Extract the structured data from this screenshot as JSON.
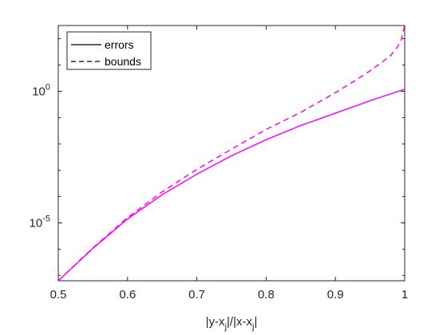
{
  "chart_data": {
    "type": "line",
    "title": "",
    "xlabel": "|y-x_j|/|x-x_j|",
    "ylabel": "",
    "xlim": [
      0.5,
      1.0
    ],
    "ylim": [
      -7.2,
      2.5
    ],
    "y_scale": "log",
    "x_ticks": [
      0.5,
      0.6,
      0.7,
      0.8,
      0.9,
      1.0
    ],
    "x_tick_labels": [
      "0.5",
      "0.6",
      "0.7",
      "0.8",
      "0.9",
      "1"
    ],
    "y_ticks": [
      {
        "exponent": 0,
        "base": "10",
        "label_exp": "0"
      },
      {
        "exponent": -5,
        "base": "10",
        "label_exp": "-5"
      }
    ],
    "grid": false,
    "legend_position": "top-left",
    "color": "#ff00ff",
    "series": [
      {
        "name": "errors",
        "line_style": "solid",
        "x": [
          0.5,
          0.55,
          0.6,
          0.65,
          0.7,
          0.75,
          0.8,
          0.85,
          0.9,
          0.95,
          1.0
        ],
        "log10_y": [
          -7.2,
          -5.97,
          -4.85,
          -3.93,
          -3.15,
          -2.45,
          -1.84,
          -1.3,
          -0.83,
          -0.36,
          0.08
        ]
      },
      {
        "name": "bounds",
        "line_style": "dashed",
        "x": [
          0.5,
          0.55,
          0.6,
          0.65,
          0.7,
          0.75,
          0.8,
          0.85,
          0.9,
          0.93,
          0.95,
          0.97,
          0.98,
          0.99,
          0.995,
          1.0
        ],
        "log10_y": [
          -7.2,
          -5.95,
          -4.8,
          -3.82,
          -2.97,
          -2.2,
          -1.45,
          -0.8,
          -0.05,
          0.43,
          0.78,
          1.16,
          1.37,
          1.7,
          1.95,
          2.5
        ]
      }
    ]
  }
}
